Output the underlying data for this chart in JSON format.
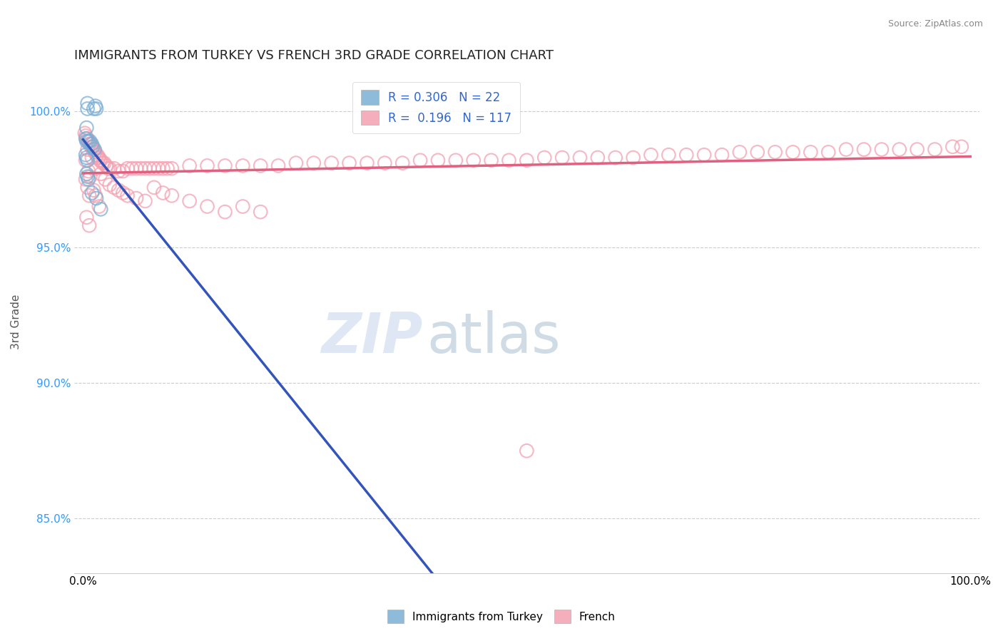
{
  "title": "IMMIGRANTS FROM TURKEY VS FRENCH 3RD GRADE CORRELATION CHART",
  "source": "Source: ZipAtlas.com",
  "ylabel": "3rd Grade",
  "y_ticks": [
    100.0,
    95.0,
    90.0,
    85.0
  ],
  "y_tick_labels": [
    "100.0%",
    "95.0%",
    "90.0%",
    "85.0%"
  ],
  "legend_blue_R": "0.306",
  "legend_blue_N": "22",
  "legend_pink_R": "0.196",
  "legend_pink_N": "117",
  "legend_blue_label": "Immigrants from Turkey",
  "legend_pink_label": "French",
  "blue_color": "#7BAFD4",
  "pink_color": "#F4A0B0",
  "blue_line_color": "#3355BB",
  "pink_line_color": "#E06080",
  "blue_scatter": [
    [
      0.5,
      100.1
    ],
    [
      0.5,
      100.3
    ],
    [
      1.2,
      100.1
    ],
    [
      1.4,
      100.2
    ],
    [
      1.5,
      100.1
    ],
    [
      0.4,
      99.4
    ],
    [
      0.3,
      99.0
    ],
    [
      0.4,
      98.9
    ],
    [
      0.6,
      98.9
    ],
    [
      0.8,
      98.9
    ],
    [
      1.0,
      98.8
    ],
    [
      1.1,
      98.7
    ],
    [
      1.3,
      98.6
    ],
    [
      0.3,
      98.4
    ],
    [
      0.4,
      98.3
    ],
    [
      0.5,
      98.2
    ],
    [
      0.4,
      97.7
    ],
    [
      0.5,
      97.6
    ],
    [
      0.6,
      97.5
    ],
    [
      1.0,
      97.0
    ],
    [
      1.5,
      96.8
    ],
    [
      2.0,
      96.4
    ]
  ],
  "pink_scatter": [
    [
      0.2,
      99.2
    ],
    [
      0.3,
      99.1
    ],
    [
      0.4,
      99.0
    ],
    [
      0.5,
      99.0
    ],
    [
      0.6,
      98.9
    ],
    [
      0.7,
      98.8
    ],
    [
      0.8,
      98.8
    ],
    [
      0.9,
      98.7
    ],
    [
      1.0,
      98.7
    ],
    [
      1.1,
      98.6
    ],
    [
      1.2,
      98.6
    ],
    [
      1.3,
      98.5
    ],
    [
      1.4,
      98.5
    ],
    [
      1.5,
      98.4
    ],
    [
      1.6,
      98.4
    ],
    [
      1.7,
      98.3
    ],
    [
      1.8,
      98.3
    ],
    [
      1.9,
      98.2
    ],
    [
      2.0,
      98.2
    ],
    [
      2.2,
      98.1
    ],
    [
      2.4,
      98.1
    ],
    [
      2.6,
      98.0
    ],
    [
      2.8,
      97.9
    ],
    [
      3.0,
      97.9
    ],
    [
      3.5,
      97.9
    ],
    [
      4.0,
      97.8
    ],
    [
      4.5,
      97.8
    ],
    [
      5.0,
      97.9
    ],
    [
      5.5,
      97.9
    ],
    [
      6.0,
      97.9
    ],
    [
      6.5,
      97.9
    ],
    [
      7.0,
      97.9
    ],
    [
      7.5,
      97.9
    ],
    [
      8.0,
      97.9
    ],
    [
      8.5,
      97.9
    ],
    [
      9.0,
      97.9
    ],
    [
      9.5,
      97.9
    ],
    [
      10.0,
      97.9
    ],
    [
      12.0,
      98.0
    ],
    [
      14.0,
      98.0
    ],
    [
      16.0,
      98.0
    ],
    [
      18.0,
      98.0
    ],
    [
      20.0,
      98.0
    ],
    [
      22.0,
      98.0
    ],
    [
      24.0,
      98.1
    ],
    [
      26.0,
      98.1
    ],
    [
      28.0,
      98.1
    ],
    [
      30.0,
      98.1
    ],
    [
      32.0,
      98.1
    ],
    [
      34.0,
      98.1
    ],
    [
      36.0,
      98.1
    ],
    [
      38.0,
      98.2
    ],
    [
      40.0,
      98.2
    ],
    [
      42.0,
      98.2
    ],
    [
      44.0,
      98.2
    ],
    [
      46.0,
      98.2
    ],
    [
      48.0,
      98.2
    ],
    [
      50.0,
      98.2
    ],
    [
      52.0,
      98.3
    ],
    [
      54.0,
      98.3
    ],
    [
      56.0,
      98.3
    ],
    [
      58.0,
      98.3
    ],
    [
      60.0,
      98.3
    ],
    [
      62.0,
      98.3
    ],
    [
      64.0,
      98.4
    ],
    [
      66.0,
      98.4
    ],
    [
      68.0,
      98.4
    ],
    [
      70.0,
      98.4
    ],
    [
      72.0,
      98.4
    ],
    [
      74.0,
      98.5
    ],
    [
      76.0,
      98.5
    ],
    [
      78.0,
      98.5
    ],
    [
      80.0,
      98.5
    ],
    [
      82.0,
      98.5
    ],
    [
      84.0,
      98.5
    ],
    [
      86.0,
      98.6
    ],
    [
      88.0,
      98.6
    ],
    [
      90.0,
      98.6
    ],
    [
      92.0,
      98.6
    ],
    [
      94.0,
      98.6
    ],
    [
      96.0,
      98.6
    ],
    [
      98.0,
      98.7
    ],
    [
      99.0,
      98.7
    ],
    [
      0.5,
      98.6
    ],
    [
      1.0,
      98.3
    ],
    [
      1.5,
      97.9
    ],
    [
      2.0,
      97.7
    ],
    [
      2.5,
      97.5
    ],
    [
      3.0,
      97.3
    ],
    [
      3.5,
      97.2
    ],
    [
      4.0,
      97.1
    ],
    [
      4.5,
      97.0
    ],
    [
      5.0,
      96.9
    ],
    [
      6.0,
      96.8
    ],
    [
      7.0,
      96.7
    ],
    [
      8.0,
      97.2
    ],
    [
      9.0,
      97.0
    ],
    [
      10.0,
      96.9
    ],
    [
      12.0,
      96.7
    ],
    [
      14.0,
      96.5
    ],
    [
      16.0,
      96.3
    ],
    [
      18.0,
      96.5
    ],
    [
      20.0,
      96.3
    ],
    [
      0.3,
      98.2
    ],
    [
      0.6,
      97.8
    ],
    [
      0.8,
      97.6
    ],
    [
      1.2,
      97.1
    ],
    [
      1.4,
      96.9
    ],
    [
      1.8,
      96.5
    ],
    [
      0.4,
      96.1
    ],
    [
      0.7,
      95.8
    ],
    [
      50.0,
      87.5
    ],
    [
      0.3,
      97.5
    ],
    [
      0.5,
      97.2
    ],
    [
      0.7,
      96.9
    ]
  ],
  "xlim": [
    0.0,
    100.0
  ],
  "ylim": [
    83.0,
    101.5
  ],
  "watermark_zip": "ZIP",
  "watermark_atlas": "atlas",
  "background": "#FFFFFF"
}
